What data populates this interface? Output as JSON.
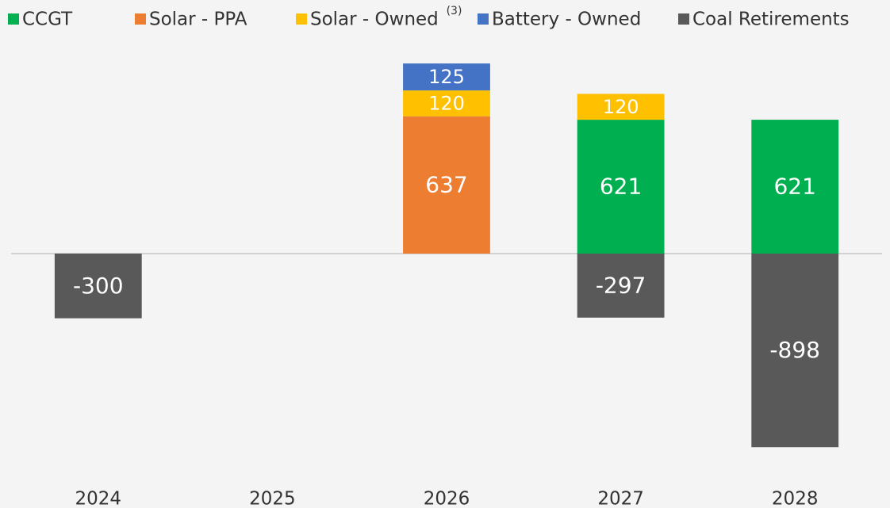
{
  "chart_data": {
    "type": "stacked_bar",
    "categories": [
      "2024",
      "2025",
      "2026",
      "2027",
      "2028"
    ],
    "series": [
      {
        "name": "CCGT",
        "color": "#00b050",
        "values": [
          null,
          null,
          null,
          621,
          621
        ]
      },
      {
        "name": "Solar - PPA",
        "color": "#ed7d31",
        "values": [
          null,
          null,
          637,
          null,
          null
        ]
      },
      {
        "name": "Solar - Owned",
        "footnote": "(3)",
        "color": "#ffc000",
        "values": [
          null,
          null,
          120,
          120,
          null
        ]
      },
      {
        "name": "Battery - Owned",
        "color": "#4472c4",
        "values": [
          null,
          null,
          125,
          null,
          null
        ]
      },
      {
        "name": "Coal Retirements",
        "color": "#595959",
        "values": [
          -300,
          null,
          null,
          -297,
          -898
        ]
      }
    ],
    "ylim": [
      -1000,
      1000
    ],
    "zero_line": true,
    "legend": "top"
  }
}
